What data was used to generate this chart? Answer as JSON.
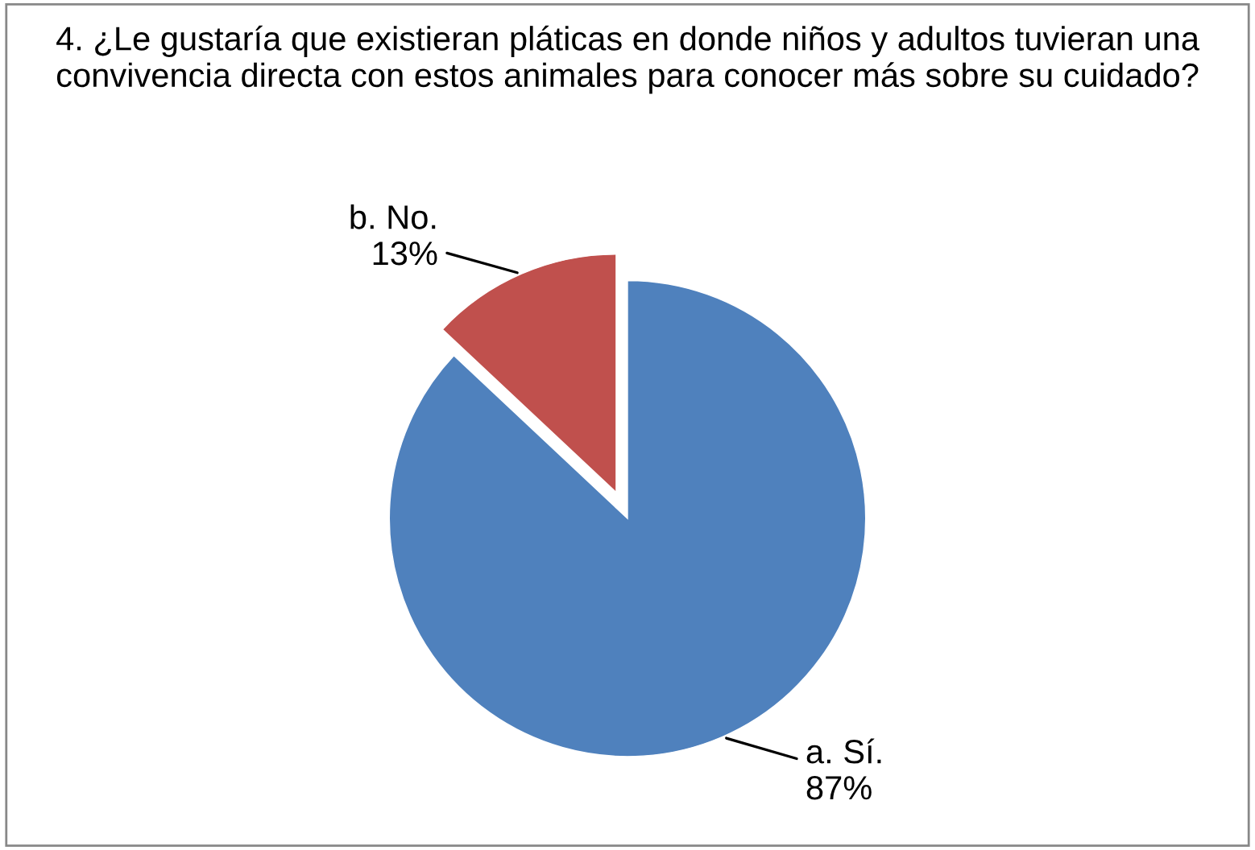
{
  "chart_data": {
    "type": "pie",
    "title": "4. ¿Le gustaría que existieran pláticas en donde niños y adultos tuvieran una convivencia directa con estos animales para conocer más sobre su cuidado?",
    "categories": [
      "a. Sí.",
      "b. No."
    ],
    "values": [
      87,
      13
    ],
    "value_labels": [
      "87%",
      "13%"
    ],
    "colors": [
      "#4f81bd",
      "#c0504d"
    ]
  }
}
